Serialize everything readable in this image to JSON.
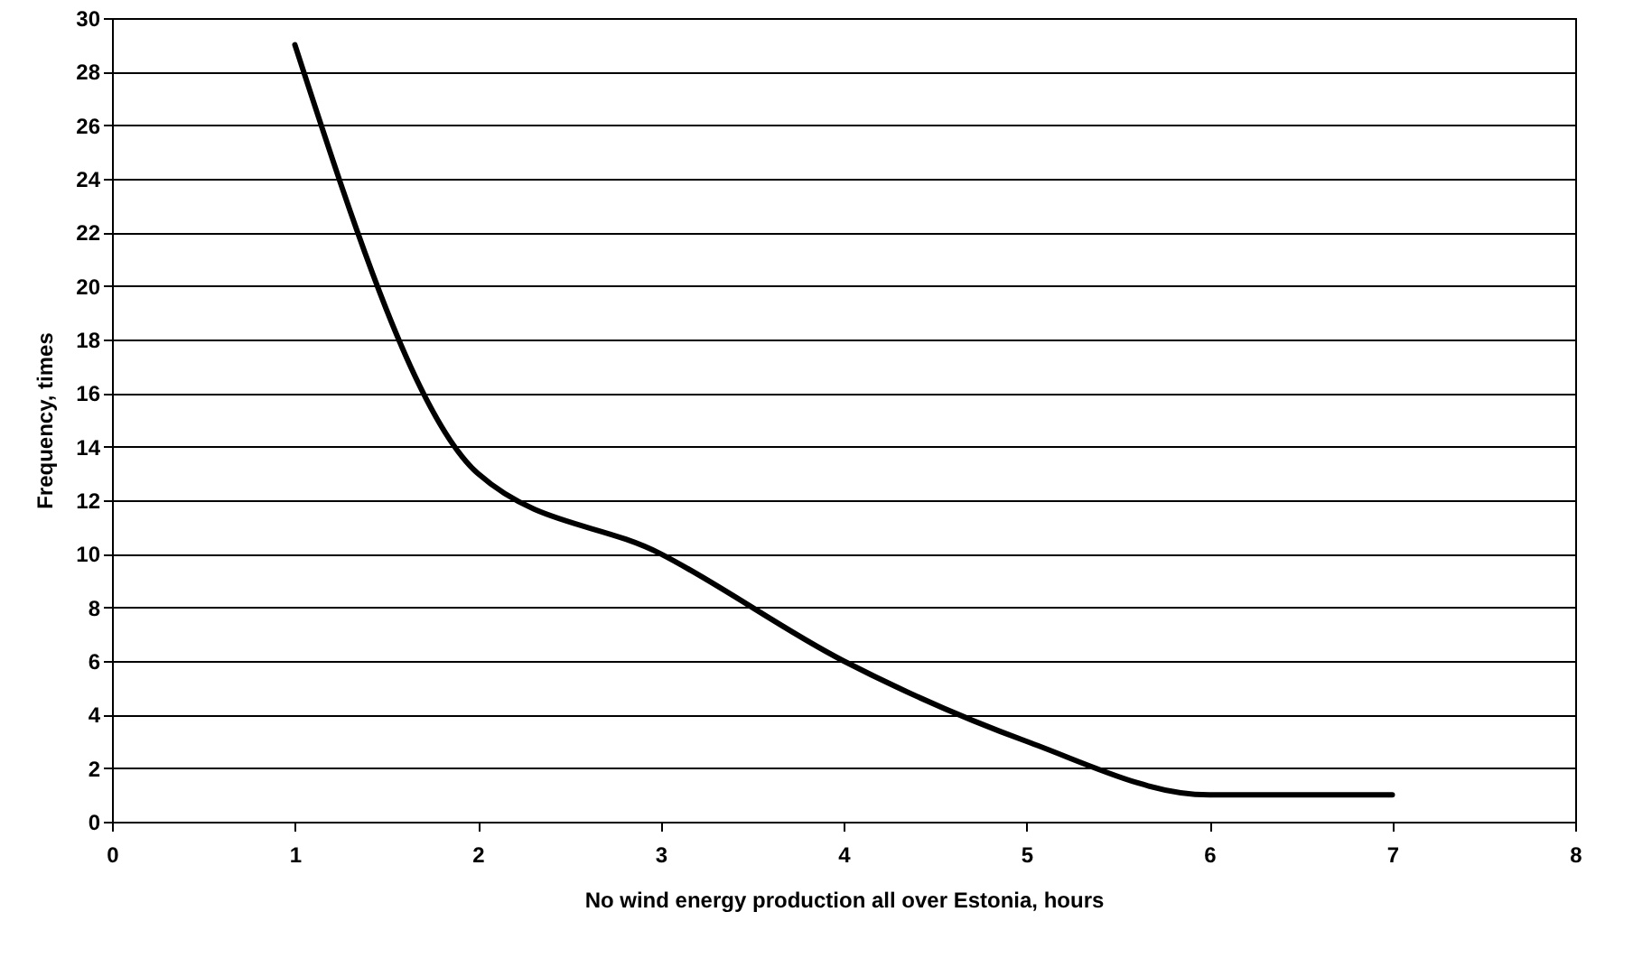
{
  "chart_data": {
    "type": "line",
    "xlabel": "No wind energy production all over Estonia, hours",
    "ylabel": "Frequency, times",
    "x": [
      1,
      2,
      3,
      4,
      5,
      6,
      7
    ],
    "series": [
      {
        "color": "#000000",
        "values": [
          29,
          13,
          10,
          6,
          3,
          1,
          1
        ]
      }
    ],
    "xlim": [
      0,
      8
    ],
    "xticks": [
      0,
      1,
      2,
      3,
      4,
      5,
      6,
      7,
      8
    ],
    "ylim": [
      0,
      30
    ],
    "yticks": [
      0,
      2,
      4,
      6,
      8,
      10,
      12,
      14,
      16,
      18,
      20,
      22,
      24,
      26,
      28,
      30
    ],
    "grid": "y",
    "marker": "none",
    "line_style": "solid"
  }
}
